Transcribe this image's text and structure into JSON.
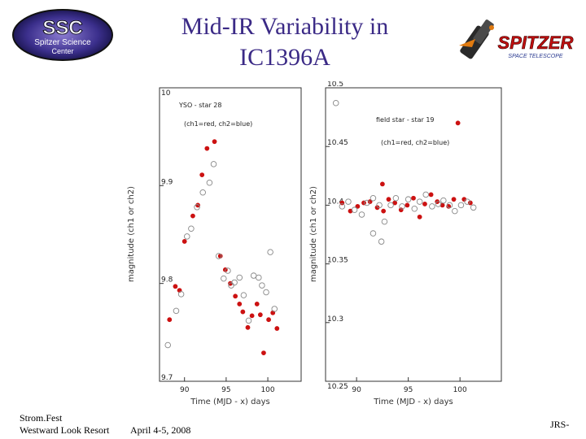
{
  "slide": {
    "title_line1": "Mid-IR Variability in",
    "title_line2": "IC1396A",
    "footer_left_line1": "Strom.Fest",
    "footer_left_line2": "Westward Look Resort",
    "footer_date": "April 4-5, 2008",
    "footer_right": "JRS-",
    "ssc_logo_text1": "SSC",
    "ssc_logo_text2": "Spitzer Science",
    "ssc_logo_text3": "Center",
    "spitzer_logo_text1": "SPITZER",
    "spitzer_logo_text2": "SPACE TELESCOPE"
  },
  "colors": {
    "title": "#3b2a86",
    "ch1": "#cc1111",
    "ch2": "#888888"
  },
  "chart_data": [
    {
      "type": "scatter",
      "annotation1": "YSO - star 28",
      "annotation2": "(ch1=red, ch2=blue)",
      "xlabel": "Time (MJD - x) days",
      "ylabel": "magnitude (ch1 or ch2)",
      "xlim": [
        87,
        104
      ],
      "ylim": [
        10.0,
        9.7
      ],
      "yticks": [
        10.0,
        9.9,
        9.8,
        9.7
      ],
      "ytick_labels": [
        "10",
        "9.9",
        "9.8",
        "9.7"
      ],
      "xticks": [
        90,
        95,
        100
      ],
      "xtick_labels": [
        "90",
        "95",
        "100"
      ],
      "series": [
        {
          "marker": "filled",
          "x": [
            88.2,
            88.9,
            89.4,
            90.0,
            91.0,
            91.6,
            92.1,
            92.7,
            93.6,
            94.3,
            94.9,
            95.5,
            96.1,
            96.6,
            97.0,
            97.6,
            98.1,
            98.7,
            99.1,
            99.5,
            100.1,
            100.6,
            101.1
          ],
          "y": [
            9.763,
            9.797,
            9.793,
            9.843,
            9.869,
            9.88,
            9.911,
            9.938,
            9.945,
            9.828,
            9.814,
            9.8,
            9.787,
            9.779,
            9.771,
            9.755,
            9.767,
            9.779,
            9.768,
            9.729,
            9.763,
            9.77,
            9.754
          ]
        },
        {
          "marker": "open",
          "x": [
            88.0,
            89.0,
            89.6,
            90.3,
            90.8,
            91.5,
            92.2,
            93.0,
            93.5,
            94.1,
            94.7,
            95.2,
            95.6,
            96.0,
            96.6,
            97.1,
            97.7,
            98.3,
            98.9,
            99.3,
            99.8,
            100.3,
            100.8
          ],
          "y": [
            9.737,
            9.772,
            9.789,
            9.848,
            9.856,
            9.878,
            9.893,
            9.903,
            9.922,
            9.828,
            9.805,
            9.813,
            9.798,
            9.801,
            9.806,
            9.788,
            9.762,
            9.808,
            9.806,
            9.798,
            9.791,
            9.832,
            9.774
          ]
        }
      ]
    },
    {
      "type": "scatter",
      "annotation1": "field star - star 19",
      "annotation2": "(ch1=red, ch2=blue)",
      "xlabel": "Time (MJD - x) days",
      "ylabel": "magnitude (ch1 or ch2)",
      "xlim": [
        87,
        104
      ],
      "ylim": [
        10.5,
        10.25
      ],
      "yticks": [
        10.25,
        10.3,
        10.35,
        10.4,
        10.45,
        10.5
      ],
      "ytick_labels": [
        "10.25",
        "10.3",
        "10.35",
        "10.4",
        "10.45",
        "10.5"
      ],
      "xticks": [
        90,
        95,
        100
      ],
      "xtick_labels": [
        "90",
        "95",
        "100"
      ],
      "series": [
        {
          "marker": "filled",
          "x": [
            88.6,
            89.4,
            90.1,
            90.7,
            91.3,
            92.0,
            92.6,
            93.1,
            93.7,
            94.3,
            94.9,
            95.5,
            96.1,
            96.6,
            97.2,
            97.8,
            98.3,
            98.9,
            99.4,
            99.8,
            100.4,
            101.0
          ],
          "y": [
            10.402,
            10.395,
            10.399,
            10.402,
            10.403,
            10.398,
            10.395,
            10.405,
            10.402,
            10.396,
            10.4,
            10.406,
            10.39,
            10.401,
            10.409,
            10.403,
            10.4,
            10.399,
            10.405,
            10.47,
            10.405,
            10.402
          ],
          "extra_x": [
            92.5
          ],
          "extra_y": [
            10.418
          ]
        },
        {
          "marker": "open",
          "x": [
            88.0,
            88.6,
            89.2,
            89.8,
            90.5,
            91.0,
            91.6,
            92.2,
            92.7,
            93.3,
            93.8,
            94.4,
            95.0,
            95.6,
            96.1,
            96.7,
            97.3,
            97.9,
            98.4,
            99.0,
            99.5,
            100.1,
            100.7,
            101.3
          ],
          "y": [
            10.487,
            10.399,
            10.403,
            10.396,
            10.392,
            10.402,
            10.406,
            10.4,
            10.386,
            10.4,
            10.406,
            10.399,
            10.405,
            10.397,
            10.403,
            10.409,
            10.399,
            10.401,
            10.404,
            10.4,
            10.395,
            10.4,
            10.403,
            10.398
          ],
          "extra_x": [
            91.6,
            92.4
          ],
          "extra_y": [
            10.376,
            10.369
          ]
        }
      ]
    }
  ]
}
